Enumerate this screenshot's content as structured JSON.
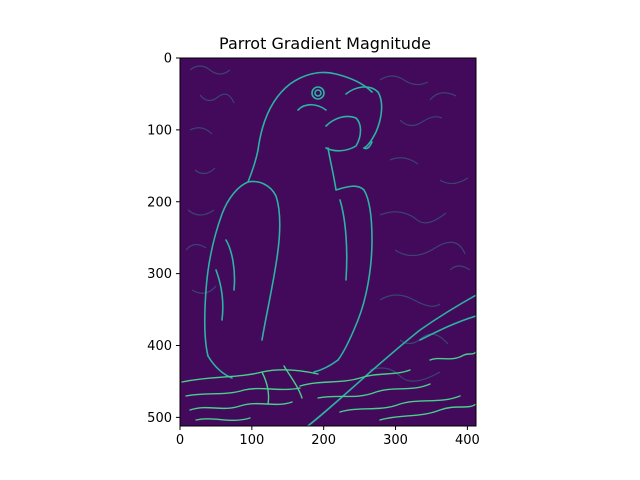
{
  "chart_data": {
    "type": "heatmap",
    "title": "Parrot Gradient Magnitude",
    "xlabel": "",
    "ylabel": "",
    "xlim": [
      0,
      412
    ],
    "ylim": [
      512,
      0
    ],
    "x_ticks": [
      0,
      100,
      200,
      300,
      400
    ],
    "y_ticks": [
      0,
      100,
      200,
      300,
      400,
      500
    ],
    "colormap": "viridis",
    "background_color": "#43095a",
    "edge_color": "#2bb3a3",
    "bright_edge_color": "#46d08c",
    "grid": false,
    "legend": "none"
  }
}
